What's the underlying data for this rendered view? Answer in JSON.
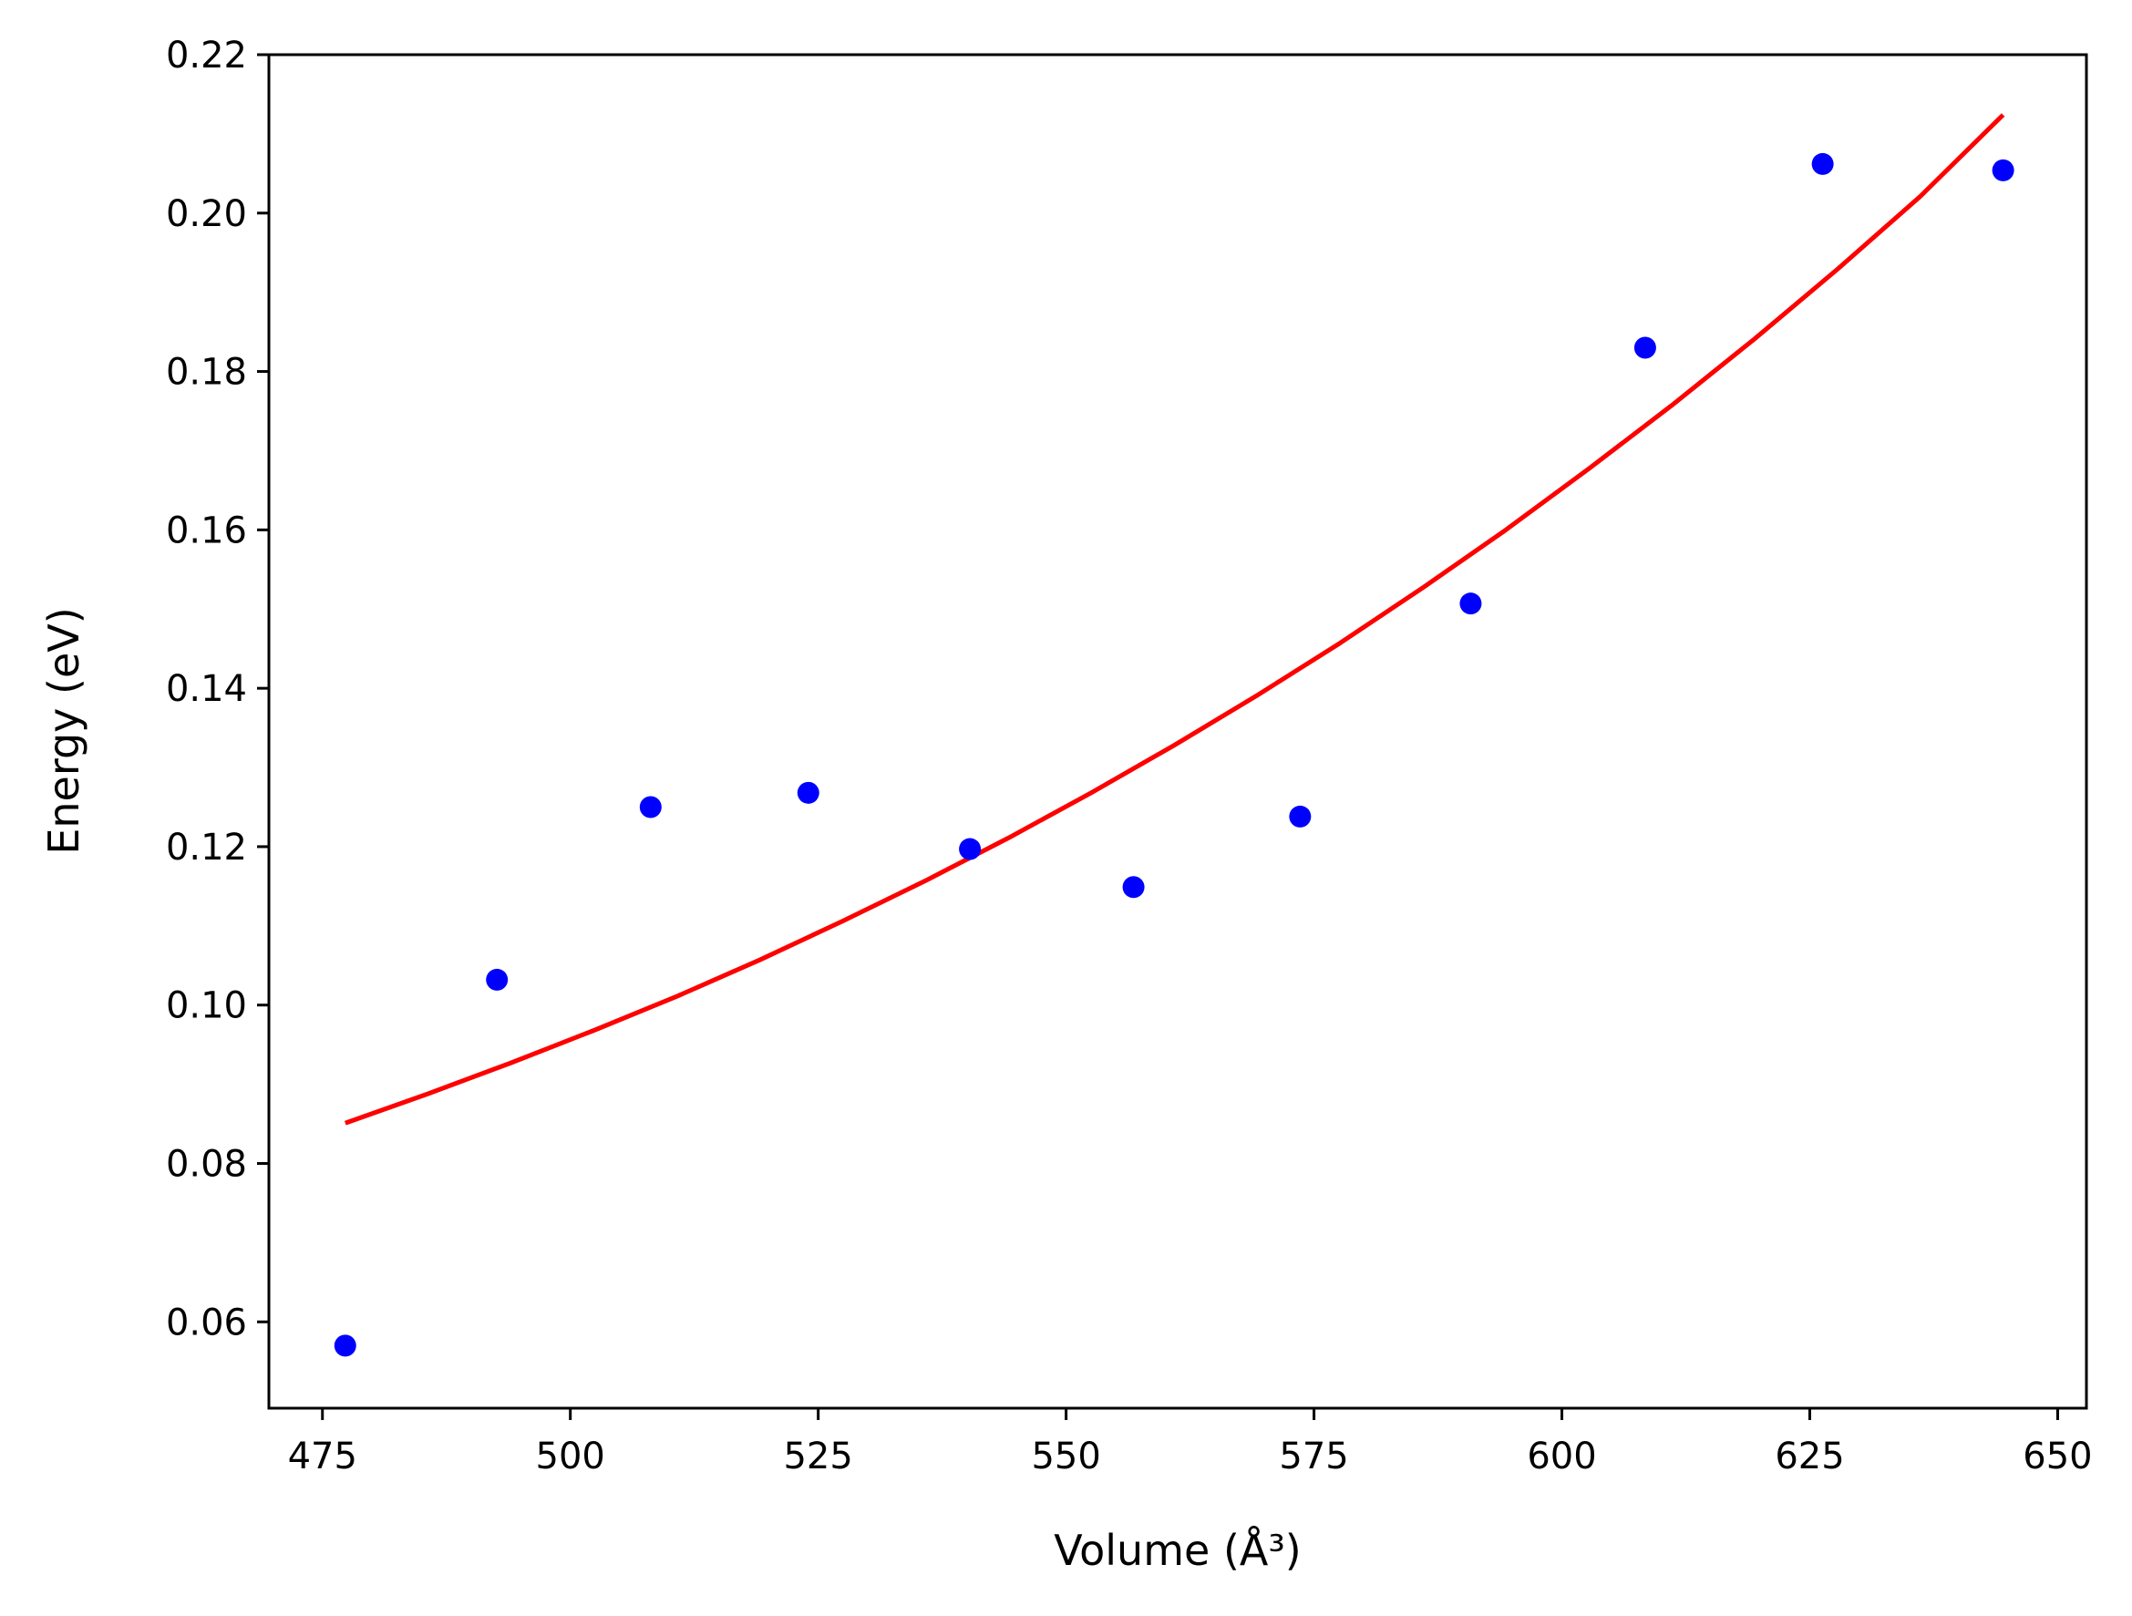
{
  "chart_data": {
    "type": "scatter",
    "title": "",
    "xlabel": "Volume (Å³)",
    "ylabel": "Energy (eV)",
    "xlim": [
      469.6,
      652.9
    ],
    "ylim": [
      0.0491,
      0.22
    ],
    "xticks": [
      475,
      500,
      525,
      550,
      575,
      600,
      625,
      650
    ],
    "yticks": [
      0.06,
      0.08,
      0.1,
      0.12,
      0.14,
      0.16,
      0.18,
      0.2,
      0.22
    ],
    "xtick_labels": [
      "475",
      "500",
      "525",
      "550",
      "575",
      "600",
      "625",
      "650"
    ],
    "ytick_labels": [
      "0.06",
      "0.08",
      "0.10",
      "0.12",
      "0.14",
      "0.16",
      "0.18",
      "0.20",
      "0.22"
    ],
    "grid": false,
    "legend": "none",
    "series": [
      {
        "kind": "scatter",
        "color": "#0000ff",
        "x": [
          477.3,
          492.6,
          508.1,
          524.0,
          540.3,
          556.8,
          573.6,
          590.8,
          608.4,
          626.3,
          644.5
        ],
        "y": [
          0.057,
          0.1032,
          0.125,
          0.1268,
          0.1197,
          0.1149,
          0.1238,
          0.1507,
          0.183,
          0.2062,
          0.2054
        ]
      },
      {
        "kind": "line",
        "color": "#ff0000",
        "x": [
          477.3,
          485.66,
          494.02,
          502.38,
          510.74,
          519.1,
          527.46,
          535.82,
          544.18,
          552.54,
          560.9,
          569.26,
          577.62,
          585.98,
          594.34,
          602.7,
          611.06,
          619.42,
          627.78,
          636.14,
          644.5
        ],
        "y": [
          0.0851,
          0.0888,
          0.0927,
          0.0968,
          0.1011,
          0.1057,
          0.1106,
          0.1157,
          0.1211,
          0.1268,
          0.1328,
          0.1391,
          0.1457,
          0.1527,
          0.16,
          0.1677,
          0.1757,
          0.1841,
          0.1929,
          0.2021,
          0.2124
        ]
      }
    ]
  }
}
